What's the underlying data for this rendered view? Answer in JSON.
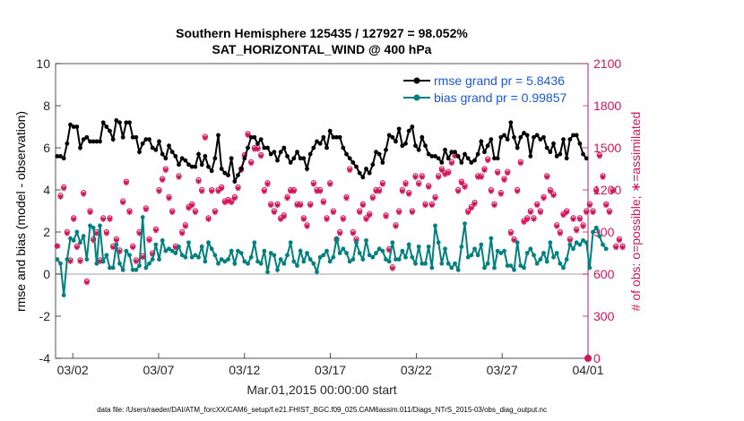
{
  "chart_data": {
    "type": "line",
    "title": "Southern Hemisphere 125435 / 127927 = 98.052%",
    "subtitle": "SAT_HORIZONTAL_WIND @ 400 hPa",
    "xlabel": "Mar.01,2015 00:00:00 start",
    "ylabel_left": "rmse and bias (model - observation)",
    "ylabel_right": "# of obs: o=possible; ∗=assimilated",
    "footnote": "data file: /Users/raeder/DAI/ATM_forcXX/CAM6_setup/f.e21.FHIST_BGC.f09_025.CAM6assim.011/Diags_NTrS_2015-03/obs_diag_output.nc",
    "x_tick_labels": [
      "03/02",
      "03/07",
      "03/12",
      "03/17",
      "03/22",
      "03/27",
      "04/01"
    ],
    "x_tick_days": [
      1,
      6,
      11,
      16,
      21,
      26,
      31
    ],
    "xlim_days": [
      0,
      31
    ],
    "ylim_left": [
      -4,
      10
    ],
    "y_left_ticks": [
      -4,
      -2,
      0,
      2,
      4,
      6,
      8,
      10
    ],
    "ylim_right": [
      0,
      2100
    ],
    "y_right_ticks": [
      0,
      300,
      600,
      900,
      1200,
      1500,
      1800,
      2100
    ],
    "legend": [
      {
        "label": "rmse grand pr = 5.8436",
        "color": "#000000"
      },
      {
        "label": "bias grand pr = 0.99857",
        "color": "#00807f"
      }
    ],
    "colors": {
      "rmse": "#000000",
      "bias": "#00807f",
      "obs": "#d4145a",
      "zero_line": "#c0c0c0"
    },
    "series": [
      {
        "name": "rmse grand pr",
        "values": [
          5.6,
          5.6,
          5.5,
          6.2,
          7.1,
          7.0,
          7.0,
          6.0,
          6.4,
          6.5,
          6.3,
          6.3,
          6.3,
          6.3,
          7.2,
          7.0,
          6.8,
          6.4,
          7.3,
          7.2,
          6.5,
          7.2,
          7.2,
          6.5,
          6.5,
          5.8,
          6.2,
          6.4,
          6.4,
          6.0,
          5.9,
          6.3,
          5.7,
          5.5,
          6.1,
          5.8,
          5.6,
          5.2,
          5.5,
          5.4,
          5.2,
          5.1,
          5.1,
          5.7,
          5.2,
          5.6,
          5.1,
          4.9,
          5.5,
          6.6,
          5.0,
          4.8,
          4.7,
          5.5,
          4.4,
          4.7,
          5.0,
          5.5,
          6.0,
          6.5,
          6.5,
          6.2,
          6.4,
          6.0,
          6.0,
          5.7,
          5.8,
          5.4,
          5.8,
          6.0,
          5.6,
          5.3,
          5.5,
          5.8,
          5.5,
          5.5,
          5.0,
          5.7,
          6.0,
          6.3,
          6.2,
          6.5,
          6.0,
          6.8,
          6.5,
          6.5,
          6.5,
          6.0,
          5.7,
          5.5,
          5.3,
          5.1,
          4.8,
          4.6,
          5.0,
          4.8,
          5.2,
          5.8,
          5.7,
          5.3,
          5.9,
          6.6,
          6.5,
          6.3,
          6.9,
          6.1,
          6.2,
          6.8,
          7.0,
          6.1,
          5.9,
          6.5,
          6.1,
          5.7,
          5.6,
          5.6,
          5.5,
          5.3,
          5.9,
          5.5,
          5.8,
          5.8,
          5.6,
          5.3,
          5.7,
          5.5,
          5.3,
          5.4,
          5.7,
          6.3,
          5.8,
          6.1,
          6.4,
          5.5,
          5.5,
          6.5,
          6.6,
          6.4,
          7.2,
          6.5,
          6.0,
          6.5,
          6.7,
          6.6,
          5.6,
          6.5,
          6.6,
          6.4,
          6.5,
          6.0,
          5.8,
          6.2,
          5.6,
          5.7,
          6.4,
          5.5,
          6.4,
          6.6,
          6.6,
          6.2,
          5.7,
          5.5
        ]
      },
      {
        "name": "bias grand pr",
        "values": [
          0.7,
          0.5,
          -1.0,
          0.7,
          1.7,
          1.6,
          2.0,
          1.5,
          1.8,
          0.7,
          2.3,
          2.2,
          0.5,
          2.3,
          0.6,
          0.9,
          0.3,
          0.3,
          1.4,
          0.5,
          0.2,
          1.1,
          0.9,
          0.2,
          0.2,
          0.4,
          2.7,
          0.3,
          0.5,
          0.7,
          1.4,
          0.7,
          1.6,
          1.1,
          1.2,
          1.1,
          1.0,
          1.3,
          0.9,
          0.8,
          1.5,
          0.8,
          0.9,
          0.8,
          1.3,
          0.6,
          1.5,
          1.2,
          0.9,
          0.5,
          0.7,
          0.6,
          0.7,
          1.1,
          0.5,
          1.1,
          1.0,
          0.6,
          0.5,
          0.8,
          1.5,
          0.6,
          0.5,
          1.1,
          0.1,
          1.0,
          0.9,
          0.2,
          0.7,
          0.5,
          0.9,
          1.5,
          0.6,
          0.4,
          1.1,
          0.6,
          1.0,
          0.7,
          0.5,
          0.1,
          0.8,
          0.9,
          1.1,
          0.6,
          0.8,
          1.7,
          1.0,
          1.2,
          1.0,
          0.6,
          0.7,
          1.5,
          1.0,
          0.7,
          1.6,
          0.9,
          0.8,
          1.0,
          1.2,
          1.1,
          0.7,
          0.6,
          1.5,
          0.7,
          0.7,
          1.1,
          0.8,
          1.4,
          0.8,
          0.5,
          1.3,
          0.5,
          0.5,
          1.3,
          0.3,
          2.3,
          1.5,
          0.5,
          1.2,
          0.5,
          0.3,
          0.5,
          0.2,
          1.3,
          2.4,
          0.8,
          0.9,
          1.2,
          0.9,
          1.4,
          0.3,
          0.5,
          1.7,
          0.3,
          1.1,
          1.0,
          1.1,
          0.4,
          0.4,
          0.2,
          1.5,
          0.4,
          0.3,
          1.0,
          1.2,
          0.9,
          0.5,
          0.7,
          1.0,
          0.6,
          1.5,
          0.8,
          1.0,
          0.5,
          0.3,
          0.7,
          1.4,
          1.2,
          1.5,
          1.4,
          1.6,
          1.5,
          0.3,
          2.0,
          2.2,
          1.8,
          1.4,
          1.2
        ]
      },
      {
        "name": "",
        "values": [
          800,
          1160,
          1220,
          900,
          700,
          1000,
          800,
          700,
          1180,
          550,
          1050,
          850,
          900,
          700,
          1000,
          900,
          1000,
          800,
          850,
          770,
          1120,
          1260,
          1050,
          800,
          700,
          900,
          730,
          1070,
          850,
          750,
          920,
          1200,
          1280,
          1350,
          1150,
          1050,
          800,
          1300,
          900,
          950,
          1080,
          1100,
          1050,
          1270,
          1200,
          1580,
          1000,
          1200,
          1050,
          1200,
          1220,
          1120,
          1130,
          1120,
          1150,
          1220,
          1350,
          1450,
          1600,
          1400,
          1500,
          1500,
          1450,
          1200,
          1250,
          1100,
          1050,
          1100,
          1000,
          1020,
          1150,
          1200,
          1200,
          1100,
          1100,
          1000,
          950,
          1100,
          1250,
          1200,
          1200,
          1120,
          1000,
          1250,
          1050,
          850,
          900,
          1000,
          1150,
          1350,
          900,
          850,
          1050,
          1100,
          1000,
          1030,
          1150,
          1200,
          1200,
          1250,
          1020,
          780,
          650,
          950,
          1050,
          1200,
          1250,
          1180,
          1050,
          1300,
          1250,
          1300,
          1100,
          1230,
          1100,
          1150,
          1300,
          1350,
          1320,
          1330,
          1400,
          1450,
          1200,
          1260,
          1230,
          1050,
          1080,
          1110,
          1300,
          1300,
          1350,
          1420,
          1200,
          1100,
          1330,
          1180,
          1280,
          1330,
          900,
          850,
          1200,
          1400,
          980,
          1000,
          1050,
          1000,
          1100,
          1050,
          1150,
          1300,
          1200,
          1170,
          950,
          900,
          1030,
          1050,
          850,
          1000,
          920,
          1000,
          950,
          1050,
          1100,
          1050,
          1200,
          1450,
          1300,
          1100,
          1050,
          1200,
          800,
          850,
          800
        ]
      },
      {
        "name": "",
        "values": [
          800,
          1150,
          1210,
          890,
          690,
          990,
          790,
          690,
          1170,
          540,
          1040,
          840,
          890,
          690,
          990,
          890,
          990,
          790,
          840,
          760,
          1110,
          1250,
          1040,
          790,
          690,
          890,
          720,
          1060,
          840,
          740,
          910,
          1190,
          1270,
          1340,
          1140,
          1040,
          790,
          1290,
          890,
          940,
          1070,
          1090,
          1040,
          1260,
          1190,
          1570,
          990,
          1190,
          1040,
          1190,
          1210,
          1110,
          1120,
          1110,
          1140,
          1210,
          1340,
          1440,
          1590,
          1390,
          1490,
          1490,
          1440,
          1190,
          1240,
          1090,
          1040,
          1090,
          990,
          1010,
          1140,
          1190,
          1190,
          1090,
          1090,
          990,
          940,
          1090,
          1240,
          1190,
          1190,
          1110,
          990,
          1240,
          1040,
          840,
          890,
          990,
          1140,
          1340,
          890,
          840,
          1040,
          1090,
          990,
          1020,
          1140,
          1190,
          1190,
          1240,
          1010,
          770,
          640,
          940,
          1040,
          1190,
          1240,
          1170,
          1040,
          1290,
          1240,
          1290,
          1090,
          1220,
          1090,
          1140,
          1290,
          1340,
          1310,
          1320,
          1390,
          1440,
          1190,
          1250,
          1220,
          1040,
          1070,
          1100,
          1290,
          1290,
          1340,
          1410,
          1190,
          1090,
          1320,
          1170,
          1270,
          1320,
          890,
          840,
          1190,
          1390,
          970,
          990,
          1040,
          990,
          1090,
          1040,
          1140,
          1290,
          1190,
          1160,
          940,
          890,
          1020,
          1040,
          840,
          990,
          910,
          990,
          940,
          1040,
          1090,
          1040,
          1190,
          1440,
          1290,
          1090,
          1040,
          1190,
          790,
          840,
          790
        ]
      }
    ]
  }
}
